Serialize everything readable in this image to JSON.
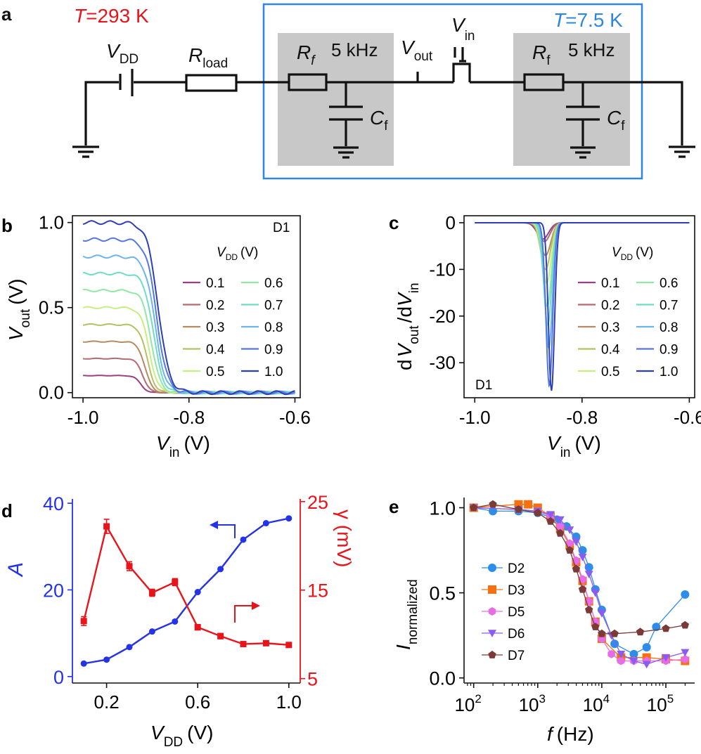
{
  "panel_a": {
    "label": "a",
    "temp_room": {
      "T": "T",
      "val": "=293 K"
    },
    "temp_cold": {
      "T": "T",
      "val": "=7.5 K"
    },
    "vdd": {
      "main": "V",
      "sub": "DD"
    },
    "rload": {
      "main": "R",
      "sub": "load"
    },
    "filter1": {
      "r": "R",
      "r_sub": "f",
      "freq": "5 kHz",
      "c": "C",
      "c_sub": "f"
    },
    "filter2": {
      "r": "R",
      "r_sub": "f",
      "freq": "5 kHz",
      "c": "C",
      "c_sub": "f"
    },
    "vout": {
      "main": "V",
      "sub": "out"
    },
    "vin": {
      "main": "V",
      "sub": "in"
    },
    "colors": {
      "room": "#e8141b",
      "cold": "#2e86de",
      "filter_bg": "#c8c8c8"
    }
  },
  "chart_data": [
    {
      "id": "b",
      "type": "line",
      "label": "b",
      "device": "D1",
      "xlabel": {
        "main": "V",
        "sub": "in",
        "unit": "(V)"
      },
      "ylabel": {
        "main": "V",
        "sub": "out",
        "unit": "(V)"
      },
      "xlim": [
        -1.02,
        -0.59
      ],
      "ylim": [
        -0.03,
        1.04
      ],
      "xticks": [
        {
          "v": -1.0,
          "t": "-1.0"
        },
        {
          "v": -0.8,
          "t": "-0.8"
        },
        {
          "v": -0.6,
          "t": "-0.6"
        }
      ],
      "yticks": [
        {
          "v": 0,
          "t": "0.0"
        },
        {
          "v": 0.5,
          "t": "0.5"
        },
        {
          "v": 1.0,
          "t": "1.0"
        }
      ],
      "legend_title": {
        "main": "V",
        "sub": "DD",
        "unit": "(V)"
      },
      "series_labels": [
        "0.1",
        "0.2",
        "0.3",
        "0.4",
        "0.5",
        "0.6",
        "0.7",
        "0.8",
        "0.9",
        "1.0"
      ],
      "vdd": [
        0.1,
        0.2,
        0.3,
        0.4,
        0.5,
        0.6,
        0.7,
        0.8,
        0.9,
        1.0
      ],
      "transition_center": [
        -0.891,
        -0.887,
        -0.883,
        -0.879,
        -0.875,
        -0.871,
        -0.867,
        -0.864,
        -0.861,
        -0.858
      ],
      "x_range": [
        -1.0,
        -0.6
      ]
    },
    {
      "id": "c",
      "type": "line",
      "label": "c",
      "device": "D1",
      "xlabel": {
        "main": "V",
        "sub": "in",
        "unit": "(V)"
      },
      "ylabel": {
        "d1": "d",
        "main1": "V",
        "sub1": "out",
        "slash": "/d",
        "main2": "V",
        "sub2": "in"
      },
      "xlim": [
        -1.02,
        -0.59
      ],
      "ylim": [
        -37.5,
        1.5
      ],
      "xticks": [
        {
          "v": -1.0,
          "t": "-1.0"
        },
        {
          "v": -0.8,
          "t": "-0.8"
        },
        {
          "v": -0.6,
          "t": "-0.6"
        }
      ],
      "yticks": [
        {
          "v": 0,
          "t": "0"
        },
        {
          "v": -10,
          "t": "-10"
        },
        {
          "v": -20,
          "t": "-20"
        },
        {
          "v": -30,
          "t": "-30"
        }
      ],
      "legend_title": {
        "main": "V",
        "sub": "DD",
        "unit": "(V)"
      },
      "series_labels": [
        "0.1",
        "0.2",
        "0.3",
        "0.4",
        "0.5",
        "0.6",
        "0.7",
        "0.8",
        "0.9",
        "1.0"
      ],
      "peak_x": [
        -0.873,
        -0.87,
        -0.868,
        -0.868,
        -0.866,
        -0.865,
        -0.864,
        -0.862,
        -0.861,
        -0.857
      ],
      "peak_y": [
        -3.5,
        -4,
        -7,
        -10,
        -13,
        -18,
        -22,
        -27,
        -35,
        -36
      ],
      "x_range": [
        -1.0,
        -0.6
      ]
    },
    {
      "id": "d",
      "type": "line",
      "label": "d",
      "xlabel": {
        "main": "V",
        "sub": "DD",
        "unit": "(V)"
      },
      "ylabel_left": "A",
      "ylabel_right": "γ (mV)",
      "xlim": [
        0.05,
        1.05
      ],
      "ylim_left": [
        -1.5,
        41
      ],
      "ylim_right": [
        4.5,
        25.3
      ],
      "xticks": [
        {
          "v": 0.2,
          "t": "0.2"
        },
        {
          "v": 0.6,
          "t": "0.6"
        },
        {
          "v": 1.0,
          "t": "1.0"
        }
      ],
      "yticks_left": [
        {
          "v": 0,
          "t": "0"
        },
        {
          "v": 20,
          "t": "20"
        },
        {
          "v": 40,
          "t": "40"
        }
      ],
      "yticks_right": [
        {
          "v": 5,
          "t": "5"
        },
        {
          "v": 15,
          "t": "15"
        },
        {
          "v": 25,
          "t": "25"
        }
      ],
      "series": [
        {
          "name": "A",
          "axis": "left",
          "color": "#2433e8",
          "x": [
            0.1,
            0.2,
            0.3,
            0.4,
            0.5,
            0.6,
            0.7,
            0.8,
            0.9,
            1.0
          ],
          "values": [
            3.0,
            3.9,
            6.8,
            10.4,
            12.7,
            19.5,
            24.8,
            31.6,
            35.4,
            36.5
          ]
        },
        {
          "name": "γ",
          "axis": "right",
          "color": "#e8141b",
          "x": [
            0.1,
            0.2,
            0.3,
            0.4,
            0.5,
            0.6,
            0.7,
            0.8,
            0.9,
            1.0
          ],
          "values": [
            11.5,
            22.2,
            17.7,
            14.7,
            15.9,
            10.8,
            9.8,
            8.9,
            9.0,
            8.8
          ],
          "errors": [
            0.5,
            0.8,
            0.5,
            0.4,
            0.4,
            0.3,
            0.3,
            0.2,
            0.2,
            0.2
          ]
        }
      ]
    },
    {
      "id": "e",
      "type": "line",
      "label": "e",
      "xlabel": {
        "main": "f",
        "unit": "(Hz)"
      },
      "ylabel": {
        "main": "I",
        "sub": "normalized"
      },
      "xscale": "log",
      "xlim_log": [
        1.85,
        5.45
      ],
      "ylim": [
        -0.03,
        1.06
      ],
      "xticks": [
        {
          "v": 2,
          "t": "10",
          "sup": "2"
        },
        {
          "v": 3,
          "t": "10",
          "sup": "3"
        },
        {
          "v": 4,
          "t": "10",
          "sup": "4"
        },
        {
          "v": 5,
          "t": "10",
          "sup": "5"
        }
      ],
      "yticks": [
        {
          "v": 0,
          "t": "0.0"
        },
        {
          "v": 0.5,
          "t": "0.5"
        },
        {
          "v": 1.0,
          "t": "1.0"
        }
      ],
      "series": [
        {
          "name": "D2",
          "color": "#2c8ee8",
          "marker": "circle",
          "logf": [
            2,
            2.3,
            2.7,
            3.0,
            3.3,
            3.45,
            3.6,
            3.7,
            3.8,
            3.9,
            4.0,
            4.2,
            4.5,
            4.7,
            4.85,
            5.3
          ],
          "values": [
            1.0,
            0.98,
            0.98,
            0.97,
            0.93,
            0.89,
            0.83,
            0.75,
            0.65,
            0.52,
            0.4,
            0.2,
            0.14,
            0.18,
            0.3,
            0.49
          ]
        },
        {
          "name": "D3",
          "color": "#f5700f",
          "marker": "square",
          "logf": [
            2,
            2.7,
            2.85,
            3.0,
            3.2,
            3.35,
            3.5,
            3.6,
            3.7,
            3.8,
            3.9,
            4.0,
            4.3,
            4.7,
            5.0,
            5.3
          ],
          "values": [
            1.0,
            1.02,
            1.02,
            1.0,
            0.95,
            0.88,
            0.78,
            0.68,
            0.57,
            0.45,
            0.33,
            0.23,
            0.12,
            0.12,
            0.11,
            0.1
          ]
        },
        {
          "name": "D5",
          "color": "#e86ce8",
          "marker": "hexagon",
          "logf": [
            2,
            2.7,
            3.0,
            3.2,
            3.35,
            3.5,
            3.6,
            3.7,
            3.8,
            3.9,
            4.0,
            4.15,
            4.3,
            4.5,
            4.7,
            5.0,
            5.3
          ],
          "values": [
            1.0,
            0.99,
            0.98,
            0.95,
            0.89,
            0.79,
            0.69,
            0.58,
            0.45,
            0.33,
            0.23,
            0.14,
            0.1,
            0.1,
            0.1,
            0.1,
            0.11
          ]
        },
        {
          "name": "D6",
          "color": "#8a5cf0",
          "marker": "triangle-down",
          "logf": [
            2,
            2.7,
            3.0,
            3.2,
            3.35,
            3.5,
            3.6,
            3.7,
            3.8,
            3.9,
            4.0,
            4.15,
            4.3,
            4.5,
            4.7,
            5.0,
            5.3
          ],
          "values": [
            1.0,
            0.99,
            0.98,
            0.96,
            0.93,
            0.87,
            0.8,
            0.71,
            0.61,
            0.5,
            0.38,
            0.25,
            0.14,
            0.1,
            0.08,
            0.12,
            0.15
          ]
        },
        {
          "name": "D7",
          "color": "#7a3b36",
          "marker": "pentagon",
          "logf": [
            2,
            2.3,
            2.7,
            3.0,
            3.2,
            3.35,
            3.5,
            3.6,
            3.7,
            3.8,
            3.9,
            4.0,
            4.2,
            4.6,
            5.0,
            5.3
          ],
          "values": [
            1.0,
            1.02,
            0.99,
            0.97,
            0.92,
            0.85,
            0.75,
            0.64,
            0.52,
            0.4,
            0.3,
            0.26,
            0.26,
            0.27,
            0.29,
            0.31
          ]
        }
      ]
    }
  ]
}
